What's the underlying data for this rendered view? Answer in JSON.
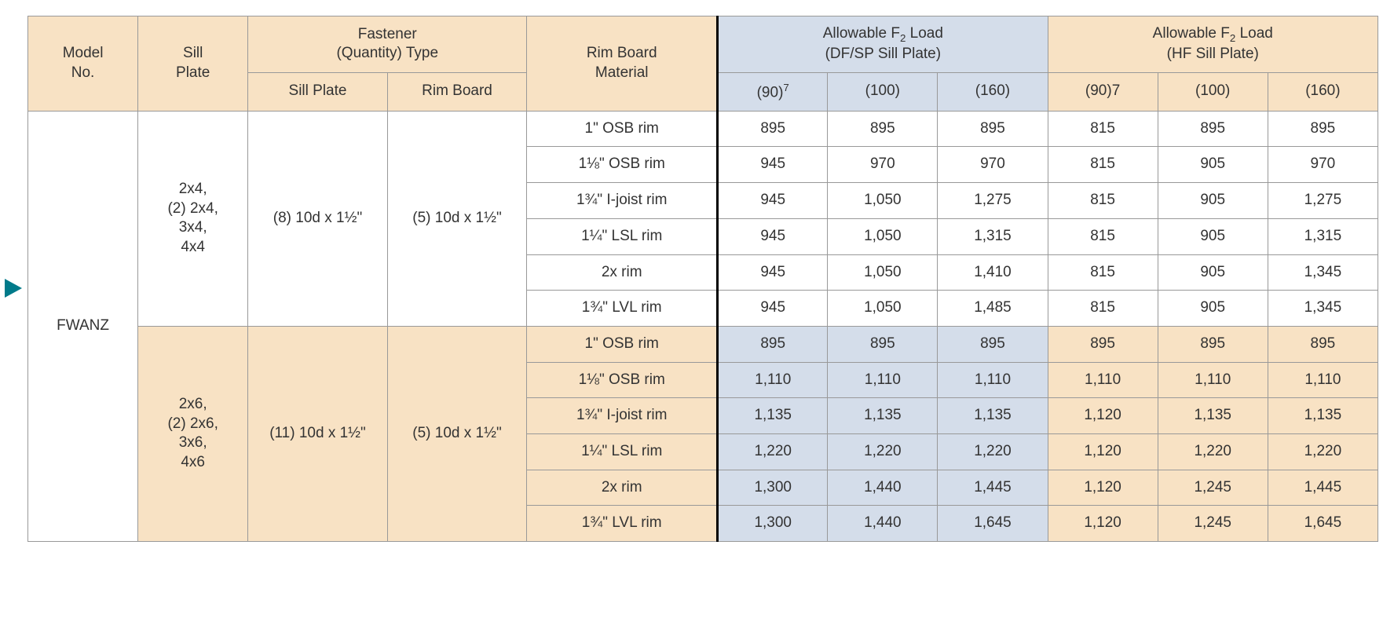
{
  "headers": {
    "model_no": "Model\nNo.",
    "sill_plate": "Sill\nPlate",
    "fastener_group": "Fastener\n(Quantity) Type",
    "fastener_sill": "Sill Plate",
    "fastener_rim": "Rim Board",
    "rim_board_material": "Rim Board\nMaterial",
    "load_df": "Allowable F₂ Load\n(DF/SP Sill Plate)",
    "load_hf": "Allowable F₂ Load\n(HF Sill Plate)",
    "c90_7": "(90)⁷",
    "c90_7b": "(90)7",
    "c100": "(100)",
    "c160": "(160)"
  },
  "model_no": "FWANZ",
  "groups": [
    {
      "sill_plate": "2x4,\n(2) 2x4,\n3x4,\n4x4",
      "fastener_sill": "(8) 10d x 1½\"",
      "fastener_rim": "(5) 10d x 1½\"",
      "alt_tint": false,
      "rows": [
        {
          "material": "1\" OSB rim",
          "df": [
            "895",
            "895",
            "895"
          ],
          "hf": [
            "815",
            "895",
            "895"
          ]
        },
        {
          "material": "1⅛\" OSB rim",
          "df": [
            "945",
            "970",
            "970"
          ],
          "hf": [
            "815",
            "905",
            "970"
          ]
        },
        {
          "material": "1¾\" I-joist rim",
          "df": [
            "945",
            "1,050",
            "1,275"
          ],
          "hf": [
            "815",
            "905",
            "1,275"
          ]
        },
        {
          "material": "1¼\" LSL rim",
          "df": [
            "945",
            "1,050",
            "1,315"
          ],
          "hf": [
            "815",
            "905",
            "1,315"
          ]
        },
        {
          "material": "2x rim",
          "df": [
            "945",
            "1,050",
            "1,410"
          ],
          "hf": [
            "815",
            "905",
            "1,345"
          ]
        },
        {
          "material": "1¾\" LVL rim",
          "df": [
            "945",
            "1,050",
            "1,485"
          ],
          "hf": [
            "815",
            "905",
            "1,345"
          ]
        }
      ]
    },
    {
      "sill_plate": "2x6,\n(2) 2x6,\n3x6,\n4x6",
      "fastener_sill": "(11) 10d x 1½\"",
      "fastener_rim": "(5) 10d x 1½\"",
      "alt_tint": true,
      "rows": [
        {
          "material": "1\" OSB rim",
          "df": [
            "895",
            "895",
            "895"
          ],
          "hf": [
            "895",
            "895",
            "895"
          ]
        },
        {
          "material": "1⅛\" OSB rim",
          "df": [
            "1,110",
            "1,110",
            "1,110"
          ],
          "hf": [
            "1,110",
            "1,110",
            "1,110"
          ]
        },
        {
          "material": "1¾\" I-joist rim",
          "df": [
            "1,135",
            "1,135",
            "1,135"
          ],
          "hf": [
            "1,120",
            "1,135",
            "1,135"
          ]
        },
        {
          "material": "1¼\" LSL rim",
          "df": [
            "1,220",
            "1,220",
            "1,220"
          ],
          "hf": [
            "1,120",
            "1,220",
            "1,220"
          ]
        },
        {
          "material": "2x rim",
          "df": [
            "1,300",
            "1,440",
            "1,445"
          ],
          "hf": [
            "1,120",
            "1,245",
            "1,445"
          ]
        },
        {
          "material": "1¾\" LVL rim",
          "df": [
            "1,300",
            "1,440",
            "1,645"
          ],
          "hf": [
            "1,120",
            "1,245",
            "1,645"
          ]
        }
      ]
    }
  ],
  "colors": {
    "peach": "#f8e2c4",
    "blue": "#d4ddea",
    "border": "#999999",
    "text": "#333333",
    "arrow": "#007a8a"
  }
}
